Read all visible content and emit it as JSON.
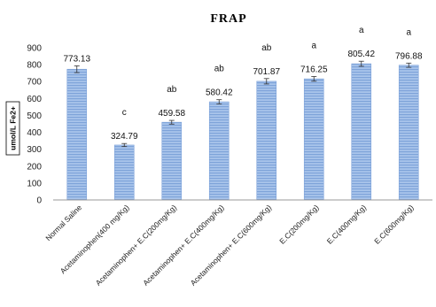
{
  "chart_data": {
    "type": "bar",
    "title": "FRAP",
    "ylabel": "umol/L Fe2+",
    "xlabel": "",
    "ylim": [
      0,
      900
    ],
    "yticks": [
      0,
      100,
      200,
      300,
      400,
      500,
      600,
      700,
      800,
      900
    ],
    "grid": false,
    "legend": "none",
    "bar_color": "#a9c4eb",
    "bar_stripe_color": "#7ea3d9",
    "categories": [
      "Normal Saline",
      "Acetaminophen(400 mg/Kg)",
      "Acetaminophen+ E.C(200mg/Kg)",
      "Acetaminophen+ E.C(400mg/Kg)",
      "Acetaminophen+ E.C(600mg/Kg)",
      "E.C(200mg/Kg)",
      "E.C(400mg/Kg)",
      "E.C(600mg/Kg)"
    ],
    "values": [
      773.13,
      324.79,
      459.58,
      580.42,
      701.87,
      716.25,
      805.42,
      796.88
    ],
    "value_labels": [
      "773.13",
      "324.79",
      "459.58",
      "580.42",
      "701.87",
      "716.25",
      "805.42",
      "796.88"
    ],
    "errors": [
      40,
      18,
      22,
      25,
      32,
      28,
      30,
      25
    ],
    "significance": [
      "",
      "c",
      "ab",
      "ab",
      "ab",
      "a",
      "a",
      "a"
    ]
  }
}
